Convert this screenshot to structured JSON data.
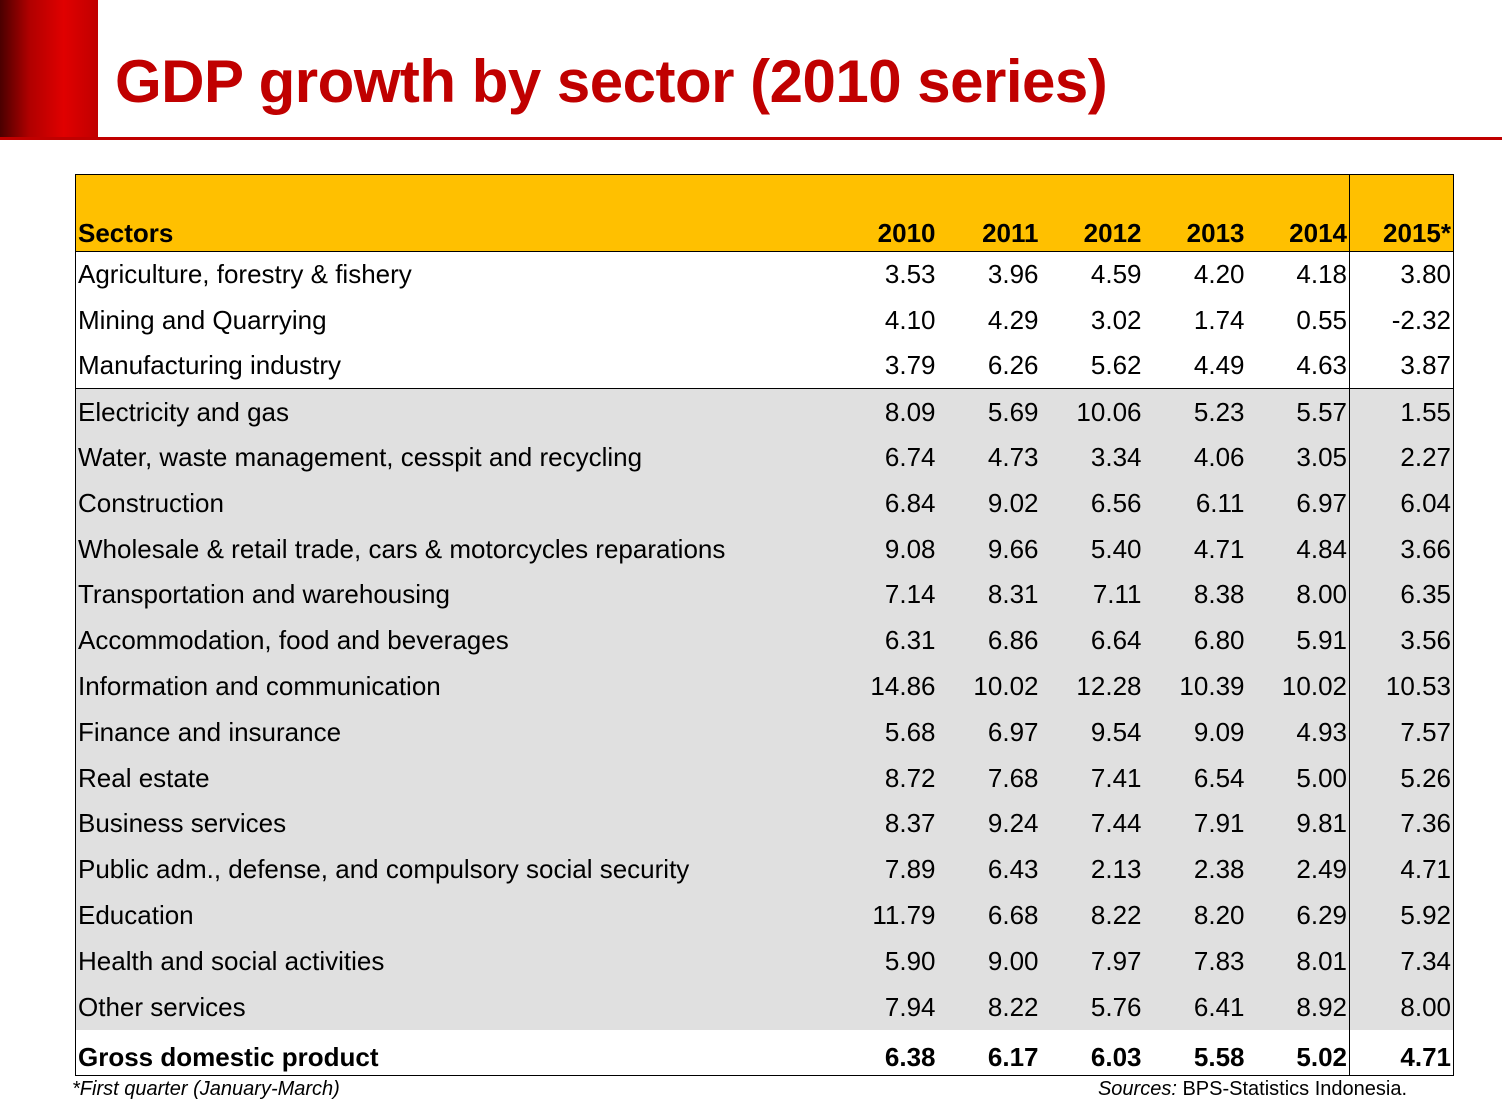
{
  "title": "GDP growth by sector (2010 series)",
  "accent_color": "#c00000",
  "header_color": "#ffc000",
  "table": {
    "headers": [
      "Sectors",
      "2010",
      "2011",
      "2012",
      "2013",
      "2014",
      "2015*"
    ],
    "rows": [
      {
        "sector": "Agriculture, forestry & fishery",
        "values": [
          "3.53",
          "3.96",
          "4.59",
          "4.20",
          "4.18",
          "3.80"
        ]
      },
      {
        "sector": "Mining and Quarrying",
        "values": [
          "4.10",
          "4.29",
          "3.02",
          "1.74",
          "0.55",
          "-2.32"
        ]
      },
      {
        "sector": "Manufacturing industry",
        "values": [
          "3.79",
          "6.26",
          "5.62",
          "4.49",
          "4.63",
          "3.87"
        ]
      },
      {
        "sector": "Electricity and gas",
        "values": [
          "8.09",
          "5.69",
          "10.06",
          "5.23",
          "5.57",
          "1.55"
        ]
      },
      {
        "sector": "Water, waste management, cesspit and recycling",
        "values": [
          "6.74",
          "4.73",
          "3.34",
          "4.06",
          "3.05",
          "2.27"
        ]
      },
      {
        "sector": "Construction",
        "values": [
          "6.84",
          "9.02",
          "6.56",
          "6.11",
          "6.97",
          "6.04"
        ]
      },
      {
        "sector": "Wholesale & retail trade, cars & motorcycles reparations",
        "values": [
          "9.08",
          "9.66",
          "5.40",
          "4.71",
          "4.84",
          "3.66"
        ]
      },
      {
        "sector": "Transportation and warehousing",
        "values": [
          "7.14",
          "8.31",
          "7.11",
          "8.38",
          "8.00",
          "6.35"
        ]
      },
      {
        "sector": "Accommodation, food and beverages",
        "values": [
          "6.31",
          "6.86",
          "6.64",
          "6.80",
          "5.91",
          "3.56"
        ]
      },
      {
        "sector": "Information and communication",
        "values": [
          "14.86",
          "10.02",
          "12.28",
          "10.39",
          "10.02",
          "10.53"
        ]
      },
      {
        "sector": "Finance and insurance",
        "values": [
          "5.68",
          "6.97",
          "9.54",
          "9.09",
          "4.93",
          "7.57"
        ]
      },
      {
        "sector": "Real estate",
        "values": [
          "8.72",
          "7.68",
          "7.41",
          "6.54",
          "5.00",
          "5.26"
        ]
      },
      {
        "sector": "Business services",
        "values": [
          "8.37",
          "9.24",
          "7.44",
          "7.91",
          "9.81",
          "7.36"
        ]
      },
      {
        "sector": "Public adm., defense, and compulsory social security",
        "values": [
          "7.89",
          "6.43",
          "2.13",
          "2.38",
          "2.49",
          "4.71"
        ]
      },
      {
        "sector": "Education",
        "values": [
          "11.79",
          "6.68",
          "8.22",
          "8.20",
          "6.29",
          "5.92"
        ]
      },
      {
        "sector": "Health and social activities",
        "values": [
          "5.90",
          "9.00",
          "7.97",
          "7.83",
          "8.01",
          "7.34"
        ]
      },
      {
        "sector": "Other services",
        "values": [
          "7.94",
          "8.22",
          "5.76",
          "6.41",
          "8.92",
          "8.00"
        ]
      },
      {
        "sector": "Gross domestic product",
        "values": [
          "6.38",
          "6.17",
          "6.03",
          "5.58",
          "5.02",
          "4.71"
        ]
      }
    ]
  },
  "footnote": "*First quarter (January-March)",
  "sources": {
    "label": "Sources:",
    "text": " BPS-Statistics Indonesia."
  }
}
